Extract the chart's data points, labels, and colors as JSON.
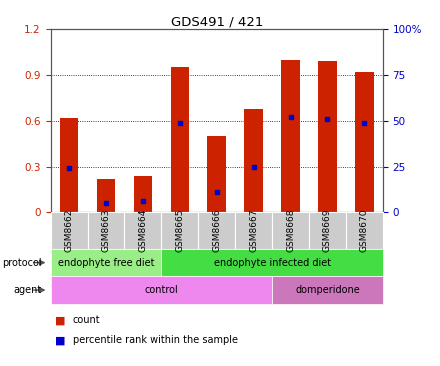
{
  "title": "GDS491 / 421",
  "samples": [
    "GSM8662",
    "GSM8663",
    "GSM8664",
    "GSM8665",
    "GSM8666",
    "GSM8667",
    "GSM8668",
    "GSM8669",
    "GSM8670"
  ],
  "counts": [
    0.62,
    0.22,
    0.24,
    0.95,
    0.5,
    0.68,
    1.0,
    0.99,
    0.92
  ],
  "percentiles": [
    24,
    5,
    6,
    49,
    11,
    25,
    52,
    51,
    49
  ],
  "ylim_left": [
    0,
    1.2
  ],
  "ylim_right": [
    0,
    100
  ],
  "yticks_left": [
    0,
    0.3,
    0.6,
    0.9,
    1.2
  ],
  "yticks_right": [
    0,
    25,
    50,
    75,
    100
  ],
  "bar_color": "#cc2200",
  "dot_color": "#0000cc",
  "protocol_groups": [
    {
      "label": "endophyte free diet",
      "start": 0,
      "end": 3,
      "color": "#99ee88"
    },
    {
      "label": "endophyte infected diet",
      "start": 3,
      "end": 9,
      "color": "#44dd44"
    }
  ],
  "agent_groups": [
    {
      "label": "control",
      "start": 0,
      "end": 6,
      "color": "#ee88ee"
    },
    {
      "label": "domperidone",
      "start": 6,
      "end": 9,
      "color": "#cc77bb"
    }
  ],
  "protocol_label": "protocol",
  "agent_label": "agent",
  "legend_count_label": "count",
  "legend_percentile_label": "percentile rank within the sample",
  "bg_color": "#ffffff",
  "tick_label_color_left": "#cc2200",
  "tick_label_color_right": "#0000cc",
  "grid_color": "#000000",
  "bar_width": 0.5,
  "xticklabel_bg": "#cccccc",
  "spine_color": "#555555"
}
